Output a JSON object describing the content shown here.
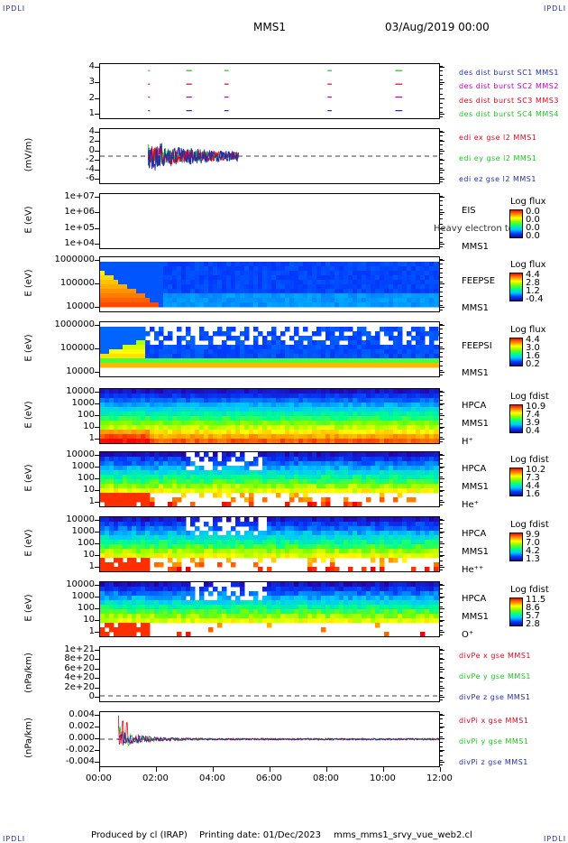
{
  "header": {
    "corner_left": "IPDLI",
    "corner_right": "IPDLI",
    "title": "MMS1",
    "date": "03/Aug/2019 00:00"
  },
  "footer": {
    "corner_left": "IPDLI",
    "corner_right": "IPDLI",
    "produced": "Produced by cl (IRAP)",
    "printing": "Printing date: 01/Dec/2023",
    "file": "mms_mms1_srvy_vue_web2.cl"
  },
  "colors": {
    "blue": "#1f2fb0",
    "red": "#e8001c",
    "magenta": "#c000c0",
    "green": "#18c818",
    "black": "#000000"
  },
  "chart_data": [
    {
      "type": "scatter",
      "name": "burst",
      "yticks": [
        "4",
        "3",
        "2",
        "1"
      ],
      "legend": [
        {
          "text": "des dist burst SC1 MMS1",
          "color": "#1f2fb0"
        },
        {
          "text": "des dist burst SC2 MMS2",
          "color": "#c000c0"
        },
        {
          "text": "des dist burst SC3 MMS3",
          "color": "#e8001c"
        },
        {
          "text": "des dist burst SC4 MMS4",
          "color": "#18c818"
        }
      ],
      "segments_hours": [
        [
          1.7,
          1.75
        ],
        [
          3.05,
          3.25
        ],
        [
          4.4,
          4.55
        ],
        [
          8.05,
          8.2
        ],
        [
          10.45,
          10.7
        ]
      ]
    },
    {
      "type": "line",
      "name": "edi",
      "ylabel": "(mV/m)",
      "yticks": [
        "4",
        "2",
        "0",
        "-2",
        "-4",
        "-6"
      ],
      "ylim": [
        -6,
        5
      ],
      "legend": [
        {
          "text": "edi ex gse l2 MMS1",
          "color": "#e8001c"
        },
        {
          "text": "edi ey gse l2 MMS1",
          "color": "#18c818"
        },
        {
          "text": "edi ez gse l2 MMS1",
          "color": "#1f2fb0"
        }
      ],
      "x_range_hours": [
        1.7,
        4.9
      ]
    },
    {
      "type": "heatmap",
      "name": "eis",
      "ylabel": "E (eV)",
      "yticks": [
        "1e+07",
        "1e+06",
        "1e+05",
        "1e+04"
      ],
      "side": [
        "EIS",
        "Heavy electron to",
        "MMS1"
      ],
      "cb_title": "Log flux",
      "cb_values": [
        "0.0",
        "0.0",
        "0.0",
        "0.0"
      ]
    },
    {
      "type": "heatmap",
      "name": "feepse",
      "ylabel": "E (eV)",
      "yticks": [
        "1000000",
        "100000",
        "10000"
      ],
      "side": [
        "FEEPSE",
        "MMS1"
      ],
      "cb_title": "Log flux",
      "cb_values": [
        "4.4",
        "2.8",
        "1.2",
        "-0.4"
      ]
    },
    {
      "type": "heatmap",
      "name": "feepsi",
      "ylabel": "E (eV)",
      "yticks": [
        "1000000",
        "100000",
        "10000"
      ],
      "side": [
        "FEEPSI",
        "MMS1"
      ],
      "cb_title": "Log flux",
      "cb_values": [
        "4.4",
        "3.0",
        "1.6",
        "0.2"
      ]
    },
    {
      "type": "heatmap",
      "name": "hpca_h",
      "ylabel": "E (eV)",
      "yticks": [
        "10000",
        "1000",
        "100",
        "10",
        "1"
      ],
      "side": [
        "HPCA",
        "MMS1",
        "H⁺"
      ],
      "cb_title": "Log fdist",
      "cb_values": [
        "10.9",
        "7.4",
        "3.9",
        "0.4"
      ]
    },
    {
      "type": "heatmap",
      "name": "hpca_he",
      "ylabel": "E (eV)",
      "yticks": [
        "10000",
        "1000",
        "100",
        "10",
        "1"
      ],
      "side": [
        "HPCA",
        "MMS1",
        "He⁺"
      ],
      "cb_title": "Log fdist",
      "cb_values": [
        "10.2",
        "7.3",
        "4.4",
        "1.6"
      ]
    },
    {
      "type": "heatmap",
      "name": "hpca_hepp",
      "ylabel": "E (eV)",
      "yticks": [
        "10000",
        "1000",
        "100",
        "10",
        "1"
      ],
      "side": [
        "HPCA",
        "MMS1",
        "He⁺⁺"
      ],
      "cb_title": "Log fdist",
      "cb_values": [
        "9.9",
        "7.0",
        "4.2",
        "1.3"
      ]
    },
    {
      "type": "heatmap",
      "name": "hpca_o",
      "ylabel": "E (eV)",
      "yticks": [
        "10000",
        "1000",
        "100",
        "10",
        "1"
      ],
      "side": [
        "HPCA",
        "MMS1",
        "O⁺"
      ],
      "cb_title": "Log fdist",
      "cb_values": [
        "11.5",
        "8.6",
        "5.7",
        "2.8"
      ]
    },
    {
      "type": "line",
      "name": "divpe",
      "ylabel": "(nPa/km)",
      "yticks": [
        "1e+21",
        "8e+20",
        "6e+20",
        "4e+20",
        "2e+20",
        "0"
      ],
      "ylim": [
        0,
        1e+21
      ],
      "legend": [
        {
          "text": "divPe x gse MMS1",
          "color": "#e8001c"
        },
        {
          "text": "divPe y gse MMS1",
          "color": "#18c818"
        },
        {
          "text": "divPe z gse MMS1",
          "color": "#1f2fb0"
        }
      ]
    },
    {
      "type": "line",
      "name": "divpi",
      "ylabel": "(nPa/km)",
      "yticks": [
        "0.004",
        "0.002",
        "0.000",
        "-0.002",
        "-0.004"
      ],
      "ylim": [
        -0.005,
        0.005
      ],
      "legend": [
        {
          "text": "divPi x gse MMS1",
          "color": "#e8001c"
        },
        {
          "text": "divPi y gse MMS1",
          "color": "#18c818"
        },
        {
          "text": "divPi z gse MMS1",
          "color": "#1f2fb0"
        }
      ]
    }
  ],
  "xaxis": {
    "ticks": [
      "00:00",
      "02:00",
      "04:00",
      "06:00",
      "08:00",
      "10:00",
      "12:00"
    ],
    "range_hours": [
      0,
      12
    ]
  }
}
